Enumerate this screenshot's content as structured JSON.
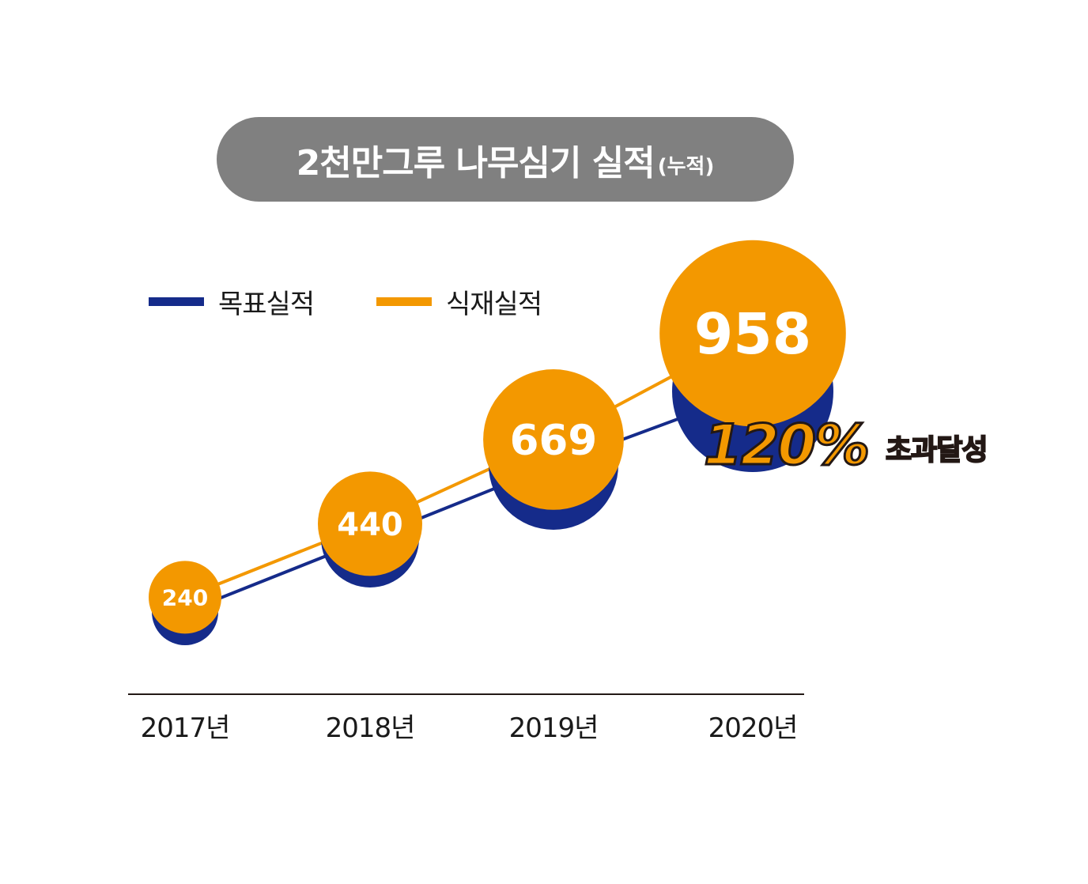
{
  "header": {
    "title": "2천만그루 나무심기 실적",
    "subtitle": "(누적)"
  },
  "legend": [
    {
      "name": "목표실적",
      "color": "#152b8a"
    },
    {
      "name": "식재실적",
      "color": "#f39800"
    }
  ],
  "annotation": {
    "value": "120%",
    "text": "초과달성"
  },
  "chart_data": {
    "type": "line",
    "title": "2천만그루 나무심기 실적(누적)",
    "categories": [
      "2017년",
      "2018년",
      "2019년",
      "2020년"
    ],
    "series": [
      {
        "name": "목표실적",
        "values": [
          200,
          400,
          600,
          800
        ],
        "color": "#152b8a"
      },
      {
        "name": "식재실적",
        "values": [
          240,
          440,
          669,
          958
        ],
        "color": "#f39800"
      }
    ],
    "grid": false,
    "legend_position": "top-left"
  }
}
